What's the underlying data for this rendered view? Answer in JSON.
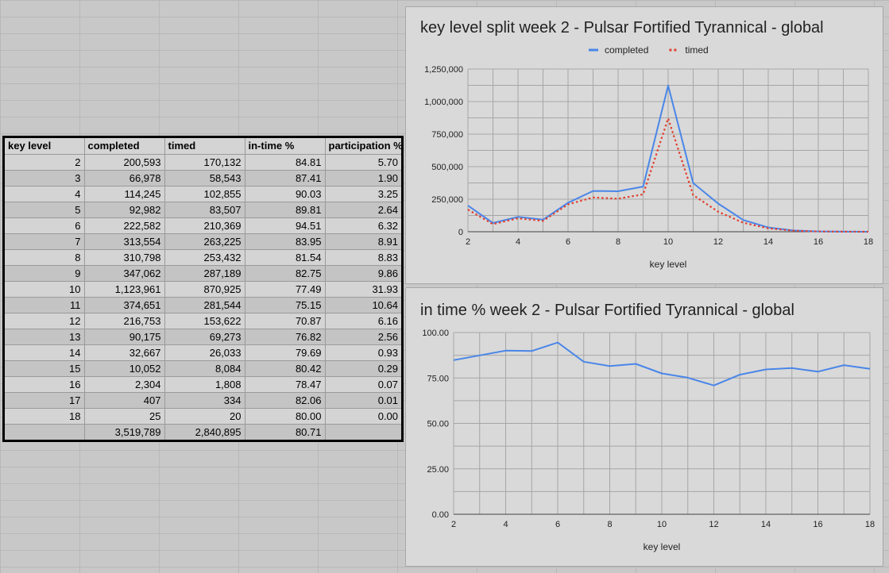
{
  "table": {
    "headers": [
      "key level",
      "completed",
      "timed",
      "in-time %",
      "participation %"
    ],
    "rows": [
      [
        "2",
        "200,593",
        "170,132",
        "84.81",
        "5.70"
      ],
      [
        "3",
        "66,978",
        "58,543",
        "87.41",
        "1.90"
      ],
      [
        "4",
        "114,245",
        "102,855",
        "90.03",
        "3.25"
      ],
      [
        "5",
        "92,982",
        "83,507",
        "89.81",
        "2.64"
      ],
      [
        "6",
        "222,582",
        "210,369",
        "94.51",
        "6.32"
      ],
      [
        "7",
        "313,554",
        "263,225",
        "83.95",
        "8.91"
      ],
      [
        "8",
        "310,798",
        "253,432",
        "81.54",
        "8.83"
      ],
      [
        "9",
        "347,062",
        "287,189",
        "82.75",
        "9.86"
      ],
      [
        "10",
        "1,123,961",
        "870,925",
        "77.49",
        "31.93"
      ],
      [
        "11",
        "374,651",
        "281,544",
        "75.15",
        "10.64"
      ],
      [
        "12",
        "216,753",
        "153,622",
        "70.87",
        "6.16"
      ],
      [
        "13",
        "90,175",
        "69,273",
        "76.82",
        "2.56"
      ],
      [
        "14",
        "32,667",
        "26,033",
        "79.69",
        "0.93"
      ],
      [
        "15",
        "10,052",
        "8,084",
        "80.42",
        "0.29"
      ],
      [
        "16",
        "2,304",
        "1,808",
        "78.47",
        "0.07"
      ],
      [
        "17",
        "407",
        "334",
        "82.06",
        "0.01"
      ],
      [
        "18",
        "25",
        "20",
        "80.00",
        "0.00"
      ],
      [
        "",
        "3,519,789",
        "2,840,895",
        "80.71",
        ""
      ]
    ]
  },
  "chart_data": [
    {
      "type": "line",
      "title": "key level split week 2 - Pulsar Fortified Tyrannical - global",
      "xlabel": "key level",
      "ylabel": "",
      "x": [
        2,
        3,
        4,
        5,
        6,
        7,
        8,
        9,
        10,
        11,
        12,
        13,
        14,
        15,
        16,
        17,
        18
      ],
      "xlim": [
        2,
        18
      ],
      "xticks": [
        "2",
        "4",
        "6",
        "8",
        "10",
        "12",
        "14",
        "16",
        "18"
      ],
      "ylim": [
        0,
        1250000
      ],
      "yticks": [
        "0",
        "250,000",
        "500,000",
        "750,000",
        "1,000,000",
        "1,250,000"
      ],
      "grid": true,
      "legend": "top",
      "series": [
        {
          "name": "completed",
          "color": "#4a86e8",
          "style": "solid",
          "values": [
            200593,
            66978,
            114245,
            92982,
            222582,
            313554,
            310798,
            347062,
            1123961,
            374651,
            216753,
            90175,
            32667,
            10052,
            2304,
            407,
            25
          ]
        },
        {
          "name": "timed",
          "color": "#e0402f",
          "style": "dotted",
          "values": [
            170132,
            58543,
            102855,
            83507,
            210369,
            263225,
            253432,
            287189,
            870925,
            281544,
            153622,
            69273,
            26033,
            8084,
            1808,
            334,
            20
          ]
        }
      ]
    },
    {
      "type": "line",
      "title": "in time % week 2 - Pulsar Fortified Tyrannical - global",
      "xlabel": "key level",
      "ylabel": "",
      "x": [
        2,
        3,
        4,
        5,
        6,
        7,
        8,
        9,
        10,
        11,
        12,
        13,
        14,
        15,
        16,
        17,
        18
      ],
      "xlim": [
        2,
        18
      ],
      "xticks": [
        "2",
        "4",
        "6",
        "8",
        "10",
        "12",
        "14",
        "16",
        "18"
      ],
      "ylim": [
        0,
        100
      ],
      "yticks": [
        "0.00",
        "25.00",
        "50.00",
        "75.00",
        "100.00"
      ],
      "grid": true,
      "legend": "none",
      "series": [
        {
          "color": "#4a86e8",
          "style": "solid",
          "values": [
            84.81,
            87.41,
            90.03,
            89.81,
            94.51,
            83.95,
            81.54,
            82.75,
            77.49,
            75.15,
            70.87,
            76.82,
            79.69,
            80.42,
            78.47,
            82.06,
            80.0
          ]
        }
      ]
    }
  ]
}
